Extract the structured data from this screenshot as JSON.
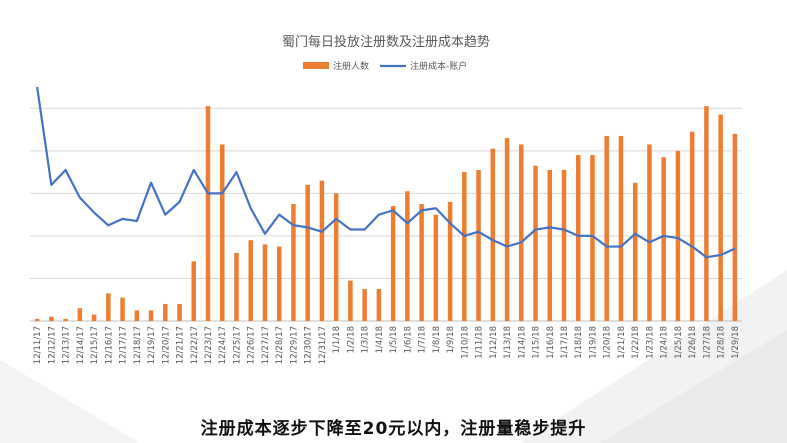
{
  "caption": "注册成本逐步下降至20元以内，注册量稳步提升",
  "colors": {
    "bar": "#ED7D31",
    "line": "#4472C4",
    "grid": "#D9D9D9",
    "axis": "#BFBFBF"
  },
  "chart_data": {
    "type": "bar+line",
    "title": "蜀门每日投放注册数及注册成本趋势",
    "legend": [
      "注册人数",
      "注册成本-账户"
    ],
    "legend_position": "top-center",
    "grid": true,
    "ylim": [
      0,
      110
    ],
    "categories": [
      "12/11/17",
      "12/12/17",
      "12/13/17",
      "12/14/17",
      "12/15/17",
      "12/16/17",
      "12/17/17",
      "12/18/17",
      "12/19/17",
      "12/20/17",
      "12/21/17",
      "12/22/17",
      "12/23/17",
      "12/24/17",
      "12/25/17",
      "12/26/17",
      "12/27/17",
      "12/28/17",
      "12/29/17",
      "12/30/17",
      "12/31/17",
      "1/1/18",
      "1/2/18",
      "1/3/18",
      "1/4/18",
      "1/5/18",
      "1/6/18",
      "1/7/18",
      "1/8/18",
      "1/9/18",
      "1/10/18",
      "1/11/18",
      "1/12/18",
      "1/13/18",
      "1/14/18",
      "1/15/18",
      "1/16/18",
      "1/17/18",
      "1/18/18",
      "1/19/18",
      "1/20/18",
      "1/21/18",
      "1/22/18",
      "1/23/18",
      "1/24/18",
      "1/25/18",
      "1/26/18",
      "1/27/18",
      "1/28/18",
      "1/29/18"
    ],
    "series": [
      {
        "name": "注册人数",
        "type": "bar",
        "values": [
          1,
          2,
          1,
          6,
          3,
          13,
          11,
          5,
          5,
          8,
          8,
          28,
          101,
          83,
          32,
          38,
          36,
          35,
          55,
          64,
          66,
          60,
          19,
          15,
          15,
          54,
          61,
          55,
          50,
          56,
          70,
          71,
          81,
          86,
          83,
          73,
          71,
          71,
          78,
          78,
          87,
          87,
          65,
          83,
          77,
          80,
          89,
          101,
          97,
          88
        ]
      },
      {
        "name": "注册成本-账户",
        "type": "line",
        "values": [
          110,
          64,
          71,
          58,
          51,
          45,
          48,
          47,
          65,
          50,
          56,
          71,
          60,
          60,
          70,
          53,
          41,
          50,
          45,
          44,
          42,
          48,
          43,
          43,
          50,
          52,
          46,
          52,
          53,
          46,
          40,
          42,
          38,
          35,
          37,
          43,
          44,
          43,
          40,
          40,
          35,
          35,
          41,
          37,
          40,
          39,
          35,
          30,
          31,
          34
        ]
      }
    ]
  }
}
